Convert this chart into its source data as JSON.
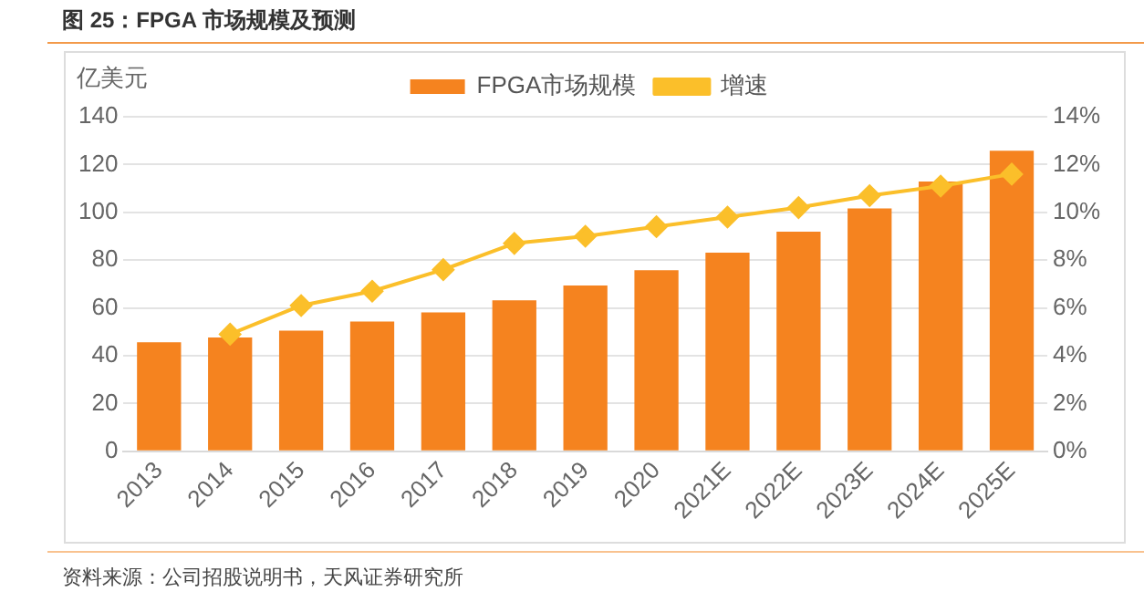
{
  "chart_data": {
    "type": "bar",
    "title": "图 25：FPGA 市场规模及预测",
    "ylabel": "亿美元",
    "categories": [
      "2013",
      "2014",
      "2015",
      "2016",
      "2017",
      "2018",
      "2019",
      "2020",
      "2021E",
      "2022E",
      "2023E",
      "2024E",
      "2025E"
    ],
    "series": [
      {
        "name": "FPGA市场规模",
        "color": "#f5831f",
        "values": [
          45.6,
          47.6,
          50.5,
          54.3,
          58.1,
          63.2,
          69.4,
          75.8,
          83.1,
          91.9,
          101.6,
          112.9,
          125.8
        ]
      },
      {
        "name": "增速",
        "type": "line",
        "axis": "y2",
        "color": "#fbbf2a",
        "marker": "diamond",
        "values": [
          null,
          4.9,
          6.1,
          6.7,
          7.6,
          8.7,
          9.0,
          9.4,
          9.8,
          10.2,
          10.7,
          11.1,
          11.6
        ]
      }
    ],
    "ylim": [
      0,
      140
    ],
    "yticks": [
      0,
      20,
      40,
      60,
      80,
      100,
      120,
      140
    ],
    "y2lim": [
      0,
      14
    ],
    "y2ticks": [
      {
        "value": 0,
        "label": "0%"
      },
      {
        "value": 2,
        "label": "2%"
      },
      {
        "value": 4,
        "label": "4%"
      },
      {
        "value": 6,
        "label": "6%"
      },
      {
        "value": 8,
        "label": "8%"
      },
      {
        "value": 10,
        "label": "10%"
      },
      {
        "value": 12,
        "label": "12%"
      },
      {
        "value": 14,
        "label": "14%"
      }
    ],
    "grid": "y",
    "legend": "top",
    "annotations": [
      "资料来源：公司招股说明书，天风证券研究所"
    ]
  }
}
